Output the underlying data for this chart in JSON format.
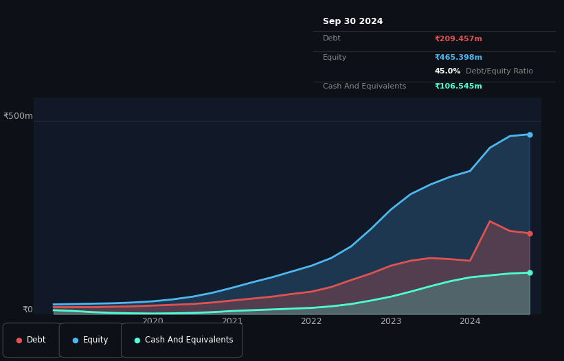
{
  "background_color": "#0d1117",
  "chart_bg_color": "#111827",
  "tooltip_date": "Sep 30 2024",
  "debt_label": "Debt",
  "equity_label": "Equity",
  "cash_label": "Cash And Equivalents",
  "debt_value": "₹209.457m",
  "equity_value": "₹465.398m",
  "ratio_value": "45.0%",
  "ratio_label": "Debt/Equity Ratio",
  "cash_value": "₹106.545m",
  "debt_color": "#e05252",
  "equity_color": "#4db8f0",
  "cash_color": "#4dffd2",
  "ylabel_500": "₹500m",
  "ylabel_0": "₹0",
  "ylim": [
    0,
    560
  ],
  "xlim_start": 2018.5,
  "xlim_end": 2024.9,
  "xtick_labels": [
    "2020",
    "2021",
    "2022",
    "2023",
    "2024"
  ],
  "xtick_positions": [
    2020,
    2021,
    2022,
    2023,
    2024
  ],
  "years": [
    2018.75,
    2019.0,
    2019.25,
    2019.5,
    2019.75,
    2020.0,
    2020.25,
    2020.5,
    2020.75,
    2021.0,
    2021.25,
    2021.5,
    2021.75,
    2022.0,
    2022.25,
    2022.5,
    2022.75,
    2023.0,
    2023.25,
    2023.5,
    2023.75,
    2024.0,
    2024.25,
    2024.5,
    2024.75
  ],
  "debt": [
    18,
    18,
    18,
    19,
    20,
    22,
    24,
    26,
    30,
    35,
    40,
    45,
    52,
    58,
    70,
    88,
    105,
    125,
    138,
    145,
    142,
    138,
    240,
    215,
    209
  ],
  "equity": [
    25,
    26,
    27,
    28,
    30,
    33,
    38,
    45,
    55,
    68,
    82,
    95,
    110,
    125,
    145,
    175,
    220,
    270,
    310,
    335,
    355,
    370,
    430,
    460,
    465
  ],
  "cash": [
    10,
    8,
    5,
    3,
    2,
    1.5,
    2,
    3,
    5,
    8,
    10,
    12,
    14,
    16,
    20,
    26,
    35,
    45,
    58,
    72,
    85,
    95,
    100,
    105,
    107
  ]
}
